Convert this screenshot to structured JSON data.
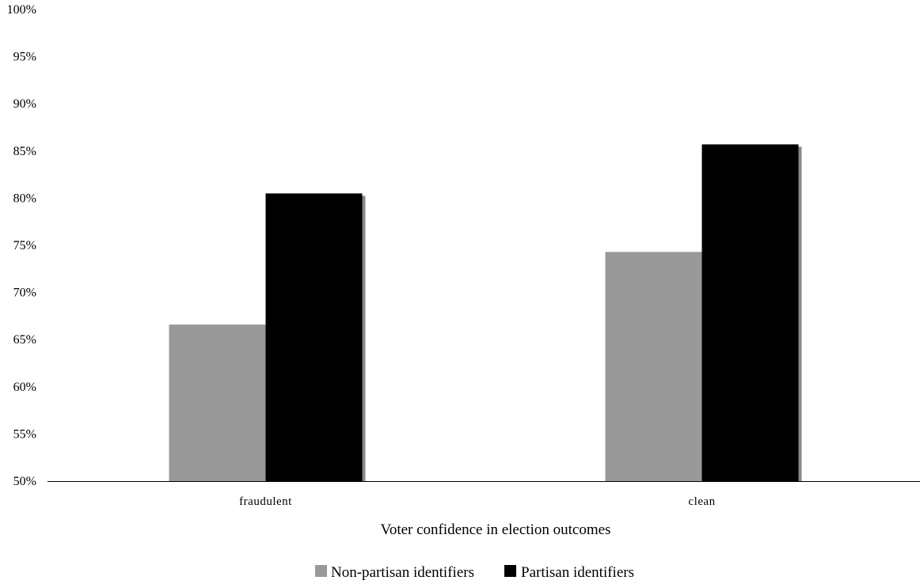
{
  "chart_data": {
    "type": "bar",
    "title": "",
    "xlabel": "Voter confidence in election outcomes",
    "ylabel": "",
    "ylim": [
      50,
      100
    ],
    "yticks": [
      50,
      55,
      60,
      65,
      70,
      75,
      80,
      85,
      90,
      95,
      100
    ],
    "ytick_suffix": "%",
    "categories": [
      "fraudulent",
      "clean"
    ],
    "series": [
      {
        "name": "Non-partisan identifiers",
        "values": [
          66.6,
          74.3
        ],
        "color": "#999999"
      },
      {
        "name": "Partisan identifiers",
        "values": [
          80.5,
          85.7
        ],
        "color": "#000000"
      }
    ],
    "grid": false,
    "legend_position": "bottom"
  }
}
